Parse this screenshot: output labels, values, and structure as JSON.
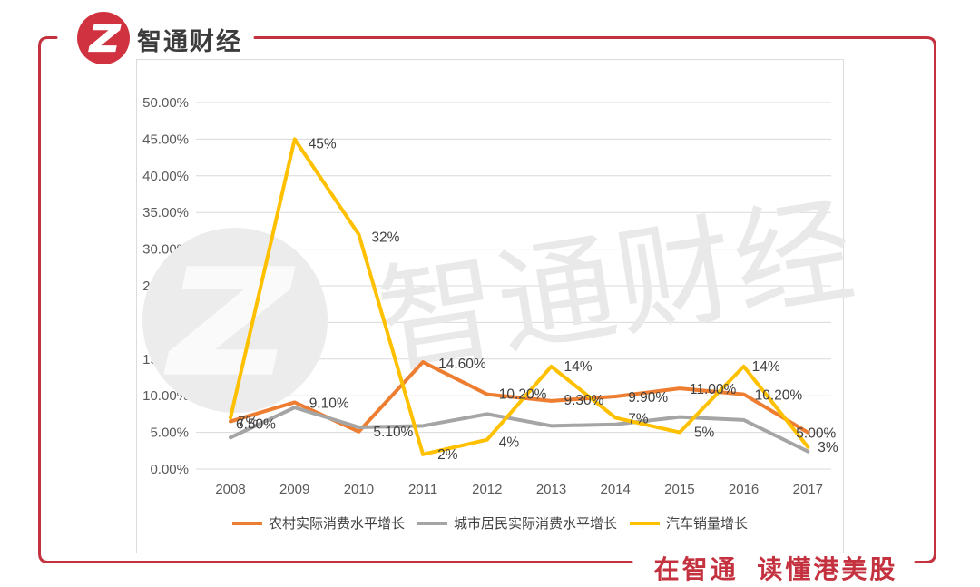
{
  "brand": {
    "name": "智通财经",
    "red": "#d13240",
    "frame_red": "#c5323f",
    "logo_icon": "zhitong-z-logo"
  },
  "slogan": {
    "text": "在智通 读懂港美股"
  },
  "watermark": {
    "text": "智通财经",
    "logo_icon": "zhitong-z-logo-watermark"
  },
  "chart_data": {
    "type": "line",
    "title": "",
    "categories": [
      "2008",
      "2009",
      "2010",
      "2011",
      "2012",
      "2013",
      "2014",
      "2015",
      "2016",
      "2017"
    ],
    "y_ticks": [
      "0.00%",
      "5.00%",
      "10.00%",
      "15.00%",
      "20.00%",
      "25.00%",
      "30.00%",
      "35.00%",
      "40.00%",
      "45.00%",
      "50.00%"
    ],
    "ylim": [
      0,
      50
    ],
    "grid": true,
    "legend_position": "bottom",
    "series": [
      {
        "name": "农村实际消费水平增长",
        "color": "#ED7D31",
        "values": [
          6.5,
          9.1,
          5.1,
          14.6,
          10.2,
          9.3,
          9.9,
          11.0,
          10.2,
          5.0
        ],
        "labels": [
          "6.50%",
          "9.10%",
          "5.10%",
          "14.60%",
          "10.20%",
          "9.30%",
          "9.90%",
          "11.00%",
          "10.20%",
          "5.00%"
        ],
        "label_offsets": [
          [
            6,
            8
          ],
          [
            16,
            6
          ],
          [
            16,
            5
          ],
          [
            17,
            7
          ],
          [
            13,
            5
          ],
          [
            14,
            4
          ],
          [
            14,
            6
          ],
          [
            11,
            6
          ],
          [
            12,
            6
          ],
          [
            -13,
            6
          ]
        ]
      },
      {
        "name": "城市居民实际消费水平增长",
        "color": "#A5A5A5",
        "values": [
          4.3,
          8.4,
          5.7,
          5.9,
          7.5,
          5.9,
          6.1,
          7.1,
          6.7,
          2.4
        ],
        "labels": null,
        "label_offsets": null
      },
      {
        "name": "汽车销量增长",
        "color": "#FFC000",
        "values": [
          7,
          45,
          32,
          2,
          4,
          14,
          7,
          5,
          14,
          3
        ],
        "labels": [
          "7%",
          "45%",
          "32%",
          "2%",
          "4%",
          "14%",
          "7%",
          "5%",
          "14%",
          "3%"
        ],
        "label_offsets": [
          [
            8,
            9
          ],
          [
            15,
            10
          ],
          [
            14,
            8
          ],
          [
            16,
            5
          ],
          [
            13,
            8
          ],
          [
            14,
            5
          ],
          [
            14,
            6
          ],
          [
            16,
            5
          ],
          [
            9,
            5
          ],
          [
            11,
            5
          ]
        ]
      }
    ]
  }
}
